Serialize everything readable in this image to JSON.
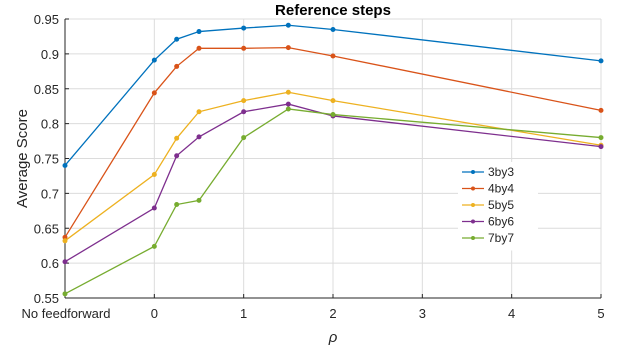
{
  "chart_data": {
    "type": "line",
    "title": "Reference steps",
    "xlabel": "ρ",
    "ylabel": "Average Score",
    "xlim": [
      -1,
      5
    ],
    "ylim": [
      0.55,
      0.95
    ],
    "xticks": [
      -1,
      0,
      1,
      2,
      3,
      4,
      5
    ],
    "xtick_labels": [
      "No feedforward",
      "0",
      "1",
      "2",
      "3",
      "4",
      "5"
    ],
    "yticks": [
      0.55,
      0.6,
      0.65,
      0.7,
      0.75,
      0.8,
      0.85,
      0.9,
      0.95
    ],
    "ytick_labels": [
      "0.55",
      "0.6",
      "0.65",
      "0.7",
      "0.75",
      "0.8",
      "0.85",
      "0.9",
      "0.95"
    ],
    "grid": true,
    "legend_position": "right-center",
    "x": [
      -1,
      0,
      0.25,
      0.5,
      1,
      1.5,
      2,
      5
    ],
    "series": [
      {
        "name": "3by3",
        "color": "#0072BD",
        "values": [
          0.74,
          0.891,
          0.921,
          0.932,
          0.937,
          0.941,
          0.935,
          0.89
        ]
      },
      {
        "name": "4by4",
        "color": "#D95319",
        "values": [
          0.637,
          0.844,
          0.882,
          0.908,
          0.908,
          0.909,
          0.897,
          0.819
        ]
      },
      {
        "name": "5by5",
        "color": "#EDB120",
        "values": [
          0.632,
          0.727,
          0.779,
          0.817,
          0.833,
          0.845,
          0.833,
          0.769
        ]
      },
      {
        "name": "6by6",
        "color": "#7E2F8E",
        "values": [
          0.602,
          0.679,
          0.754,
          0.781,
          0.817,
          0.828,
          0.811,
          0.767
        ]
      },
      {
        "name": "7by7",
        "color": "#77AC30",
        "values": [
          0.556,
          0.624,
          0.684,
          0.69,
          0.78,
          0.821,
          0.813,
          0.78
        ]
      }
    ]
  }
}
